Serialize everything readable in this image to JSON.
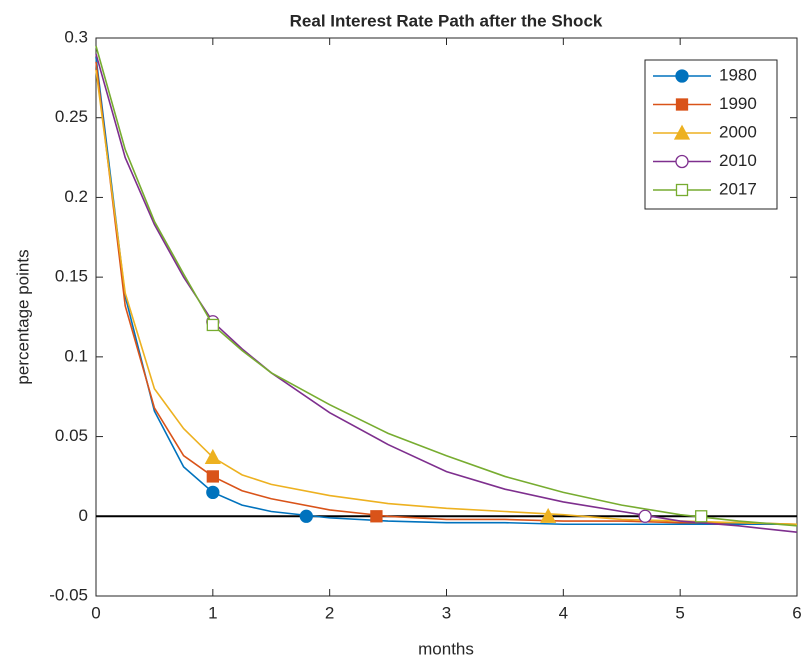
{
  "chart_data": {
    "type": "line",
    "title": "Real Interest Rate Path after the Shock",
    "xlabel": "months",
    "ylabel": "percentage points",
    "x": [
      0,
      0.25,
      0.5,
      0.75,
      1,
      1.25,
      1.5,
      2,
      2.5,
      3,
      3.5,
      4,
      4.5,
      5,
      5.5,
      6
    ],
    "series": [
      {
        "name": "1980",
        "color": "#0072BD",
        "marker": "circle",
        "marker_filled": true,
        "values": [
          0.288,
          0.138,
          0.066,
          0.031,
          0.015,
          0.007,
          0.003,
          -0.001,
          -0.003,
          -0.004,
          -0.004,
          -0.005,
          -0.005,
          -0.005,
          -0.005,
          -0.005
        ],
        "marker_points": {
          "x": [
            1,
            1.8
          ],
          "values": [
            0.015,
            0
          ]
        }
      },
      {
        "name": "1990",
        "color": "#D95319",
        "marker": "square",
        "marker_filled": true,
        "values": [
          0.285,
          0.132,
          0.068,
          0.038,
          0.025,
          0.016,
          0.011,
          0.004,
          0.0,
          -0.002,
          -0.002,
          -0.003,
          -0.003,
          -0.004,
          -0.004,
          -0.005
        ],
        "marker_points": {
          "x": [
            1,
            2.4
          ],
          "values": [
            0.025,
            0
          ]
        }
      },
      {
        "name": "2000",
        "color": "#EDB120",
        "marker": "triangle",
        "marker_filled": true,
        "values": [
          0.28,
          0.14,
          0.08,
          0.055,
          0.037,
          0.026,
          0.02,
          0.013,
          0.008,
          0.005,
          0.003,
          0.001,
          -0.002,
          -0.003,
          -0.004,
          -0.005
        ],
        "marker_points": {
          "x": [
            1,
            3.87
          ],
          "values": [
            0.037,
            0
          ]
        }
      },
      {
        "name": "2010",
        "color": "#7E2F8E",
        "marker": "circle",
        "marker_filled": false,
        "values": [
          0.29,
          0.225,
          0.183,
          0.15,
          0.122,
          0.105,
          0.09,
          0.065,
          0.045,
          0.028,
          0.017,
          0.009,
          0.003,
          -0.003,
          -0.006,
          -0.01
        ],
        "marker_points": {
          "x": [
            1,
            4.7
          ],
          "values": [
            0.122,
            0
          ]
        }
      },
      {
        "name": "2017",
        "color": "#77AC30",
        "marker": "square",
        "marker_filled": false,
        "values": [
          0.295,
          0.23,
          0.185,
          0.152,
          0.12,
          0.104,
          0.09,
          0.07,
          0.052,
          0.038,
          0.025,
          0.015,
          0.007,
          0.001,
          -0.003,
          -0.006
        ],
        "marker_points": {
          "x": [
            1,
            5.18
          ],
          "values": [
            0.12,
            0
          ]
        }
      }
    ],
    "hline": 0,
    "xlim": [
      0,
      6
    ],
    "xticks": [
      0,
      1,
      2,
      3,
      4,
      5,
      6
    ],
    "ylim": [
      -0.05,
      0.3
    ],
    "yticks": [
      -0.05,
      0,
      0.05,
      0.1,
      0.15,
      0.2,
      0.25,
      0.3
    ],
    "legend": "upper right",
    "grid": false
  }
}
